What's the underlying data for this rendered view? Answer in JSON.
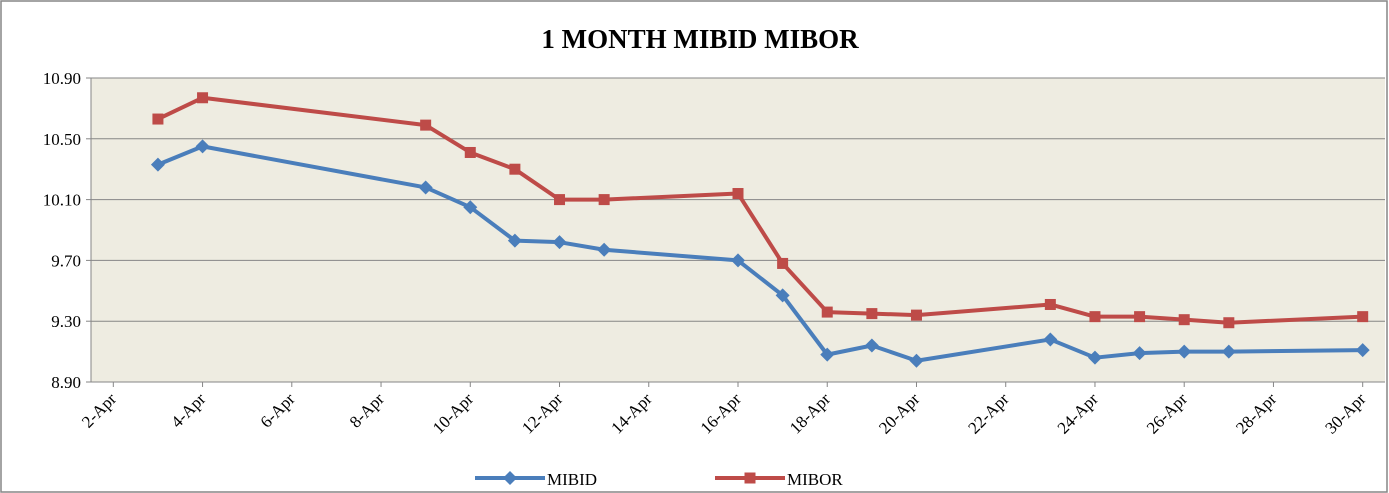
{
  "chart_data": {
    "type": "line",
    "title": "1 MONTH MIBID MIBOR",
    "x": [
      3,
      4,
      9,
      10,
      11,
      12,
      13,
      16,
      17,
      18,
      19,
      20,
      23,
      24,
      25,
      26,
      27,
      30
    ],
    "series": [
      {
        "name": "MIBID",
        "color": "#4a7ebb",
        "marker": "diamond",
        "values": [
          10.33,
          10.45,
          10.18,
          10.05,
          9.83,
          9.82,
          9.77,
          9.7,
          9.47,
          9.08,
          9.14,
          9.04,
          9.18,
          9.06,
          9.09,
          9.1,
          9.1,
          9.11
        ]
      },
      {
        "name": "MIBOR",
        "color": "#be4b48",
        "marker": "square",
        "values": [
          10.63,
          10.77,
          10.59,
          10.41,
          10.3,
          10.1,
          10.1,
          10.14,
          9.68,
          9.36,
          9.35,
          9.34,
          9.41,
          9.33,
          9.33,
          9.31,
          9.29,
          9.33
        ]
      }
    ],
    "xlim": [
      1.5,
      30.5
    ],
    "xticks": [
      {
        "value": 2,
        "label": "2-Apr"
      },
      {
        "value": 4,
        "label": "4-Apr"
      },
      {
        "value": 6,
        "label": "6-Apr"
      },
      {
        "value": 8,
        "label": "8-Apr"
      },
      {
        "value": 10,
        "label": "10-Apr"
      },
      {
        "value": 12,
        "label": "12-Apr"
      },
      {
        "value": 14,
        "label": "14-Apr"
      },
      {
        "value": 16,
        "label": "16-Apr"
      },
      {
        "value": 18,
        "label": "18-Apr"
      },
      {
        "value": 20,
        "label": "20-Apr"
      },
      {
        "value": 22,
        "label": "22-Apr"
      },
      {
        "value": 24,
        "label": "24-Apr"
      },
      {
        "value": 26,
        "label": "26-Apr"
      },
      {
        "value": 28,
        "label": "28-Apr"
      },
      {
        "value": 30,
        "label": "30-Apr"
      }
    ],
    "ylim": [
      8.9,
      10.9
    ],
    "yticks": [
      {
        "value": 8.9,
        "label": "8.90"
      },
      {
        "value": 9.3,
        "label": "9.30"
      },
      {
        "value": 9.7,
        "label": "9.70"
      },
      {
        "value": 10.1,
        "label": "10.10"
      },
      {
        "value": 10.5,
        "label": "10.50"
      },
      {
        "value": 10.9,
        "label": "10.90"
      }
    ],
    "grid": true,
    "legend": "bottom"
  }
}
